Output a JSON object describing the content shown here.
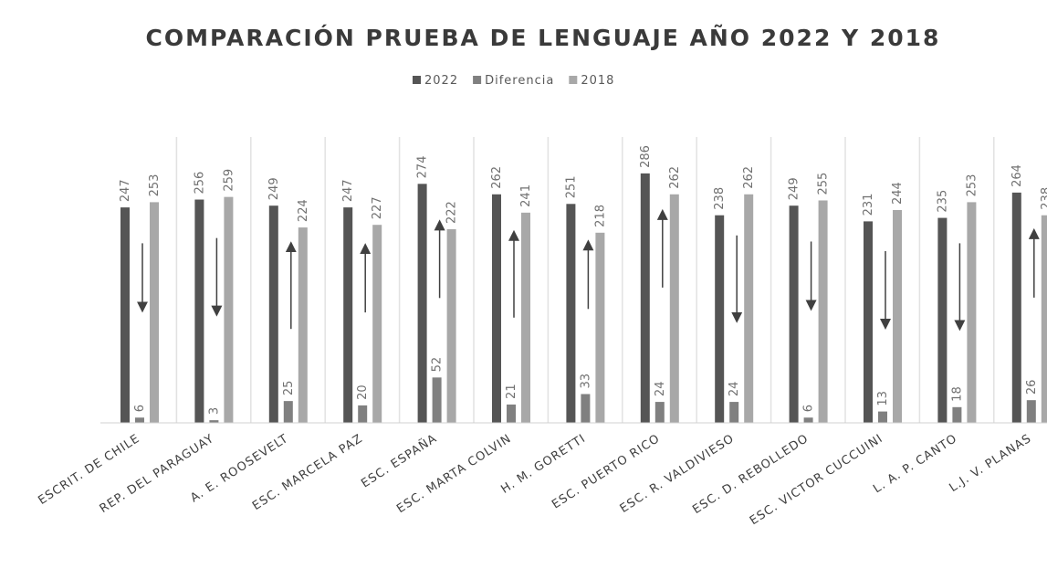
{
  "chart_data": {
    "type": "bar",
    "title": "COMPARACIÓN PRUEBA DE LENGUAJE AÑO 2022 Y 2018",
    "categories": [
      "ESCRIT. DE CHILE",
      "REP. DEL PARAGUAY",
      "A. E. ROOSEVELT",
      "ESC. MARCELA PAZ",
      "ESC. ESPAÑA",
      "ESC. MARTA COLVIN",
      "H. M. GORETTI",
      "ESC. PUERTO RICO",
      "ESC. R. VALDIVIESO",
      "ESC. D. REBOLLEDO",
      "ESC. VICTOR CUCCUINI",
      "L. A. P. CANTO",
      "L.J. V. PLANAS"
    ],
    "series": [
      {
        "name": "2022",
        "color": "#555555",
        "values": [
          247,
          256,
          249,
          247,
          274,
          262,
          251,
          286,
          238,
          249,
          231,
          235,
          264
        ]
      },
      {
        "name": "Diferencia",
        "color": "#808080",
        "values": [
          6,
          3,
          25,
          20,
          52,
          21,
          33,
          24,
          24,
          6,
          13,
          18,
          26
        ]
      },
      {
        "name": "2018",
        "color": "#a8a8a8",
        "values": [
          253,
          259,
          224,
          227,
          222,
          241,
          218,
          262,
          262,
          255,
          244,
          253,
          238
        ]
      }
    ],
    "legend": "top"
  }
}
